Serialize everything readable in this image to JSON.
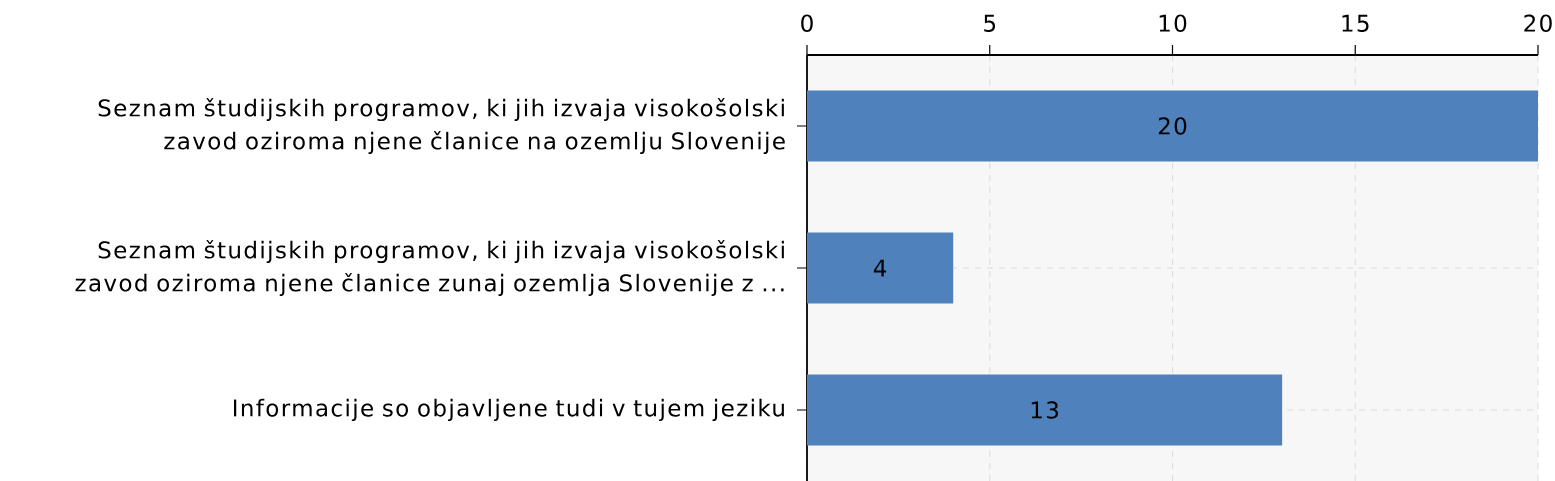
{
  "chart_data": {
    "type": "bar",
    "orientation": "horizontal",
    "categories": [
      "Seznam študijskih programov, ki jih izvaja visokošolski zavod oziroma njene članice na ozemlju Slovenije",
      "Seznam študijskih programov, ki jih izvaja visokošolski zavod oziroma njene članice zunaj ozemlja Slovenije z ...",
      "Informacije so objavljene tudi v tujem jeziku"
    ],
    "values": [
      20,
      4,
      13
    ],
    "color": "#4f81bd",
    "xlim": [
      0,
      20
    ],
    "xticks": [
      0,
      5,
      10,
      15,
      20
    ],
    "grid": true,
    "data_labels": true
  }
}
